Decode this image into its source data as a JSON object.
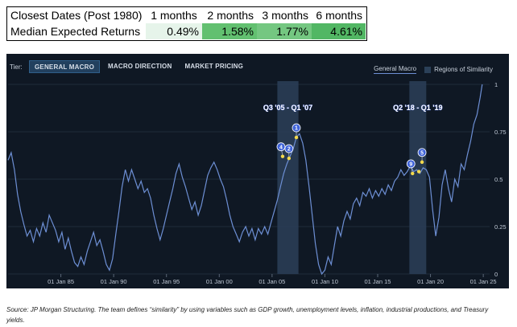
{
  "summary_table": {
    "header": [
      "Closest Dates (Post 1980)",
      "1 months",
      "2 months",
      "3 months",
      "6 months"
    ],
    "row": [
      "Median Expected Returns",
      "0.49%",
      "1.58%",
      "1.77%",
      "4.61%"
    ],
    "cell_colors": [
      "#ffffff",
      "#e6f4ea",
      "#62c070",
      "#74c781",
      "#52b764"
    ]
  },
  "panel": {
    "tier_label": "Tier:",
    "tabs": [
      {
        "label": "GENERAL MACRO",
        "active": true
      },
      {
        "label": "MACRO DIRECTION",
        "active": false
      },
      {
        "label": "MARKET PRICING",
        "active": false
      }
    ],
    "legend": {
      "line_label": "General Macro",
      "region_label": "Regions of Similarity"
    }
  },
  "chart_data": {
    "type": "line",
    "series": [
      {
        "name": "General Macro",
        "color": "#6d8fd4",
        "points": [
          [
            1980.0,
            0.6
          ],
          [
            1980.3,
            0.64
          ],
          [
            1980.6,
            0.55
          ],
          [
            1980.9,
            0.42
          ],
          [
            1981.2,
            0.33
          ],
          [
            1981.5,
            0.26
          ],
          [
            1981.8,
            0.2
          ],
          [
            1982.1,
            0.23
          ],
          [
            1982.4,
            0.17
          ],
          [
            1982.7,
            0.24
          ],
          [
            1983.0,
            0.2
          ],
          [
            1983.3,
            0.27
          ],
          [
            1983.6,
            0.22
          ],
          [
            1983.9,
            0.31
          ],
          [
            1984.2,
            0.27
          ],
          [
            1984.5,
            0.23
          ],
          [
            1984.8,
            0.17
          ],
          [
            1985.1,
            0.22
          ],
          [
            1985.4,
            0.13
          ],
          [
            1985.7,
            0.19
          ],
          [
            1986.0,
            0.12
          ],
          [
            1986.3,
            0.06
          ],
          [
            1986.6,
            0.04
          ],
          [
            1986.9,
            0.09
          ],
          [
            1987.2,
            0.05
          ],
          [
            1987.5,
            0.12
          ],
          [
            1987.8,
            0.17
          ],
          [
            1988.1,
            0.22
          ],
          [
            1988.4,
            0.15
          ],
          [
            1988.7,
            0.18
          ],
          [
            1989.0,
            0.12
          ],
          [
            1989.3,
            0.05
          ],
          [
            1989.6,
            0.02
          ],
          [
            1989.9,
            0.08
          ],
          [
            1990.2,
            0.21
          ],
          [
            1990.5,
            0.33
          ],
          [
            1990.8,
            0.46
          ],
          [
            1991.1,
            0.55
          ],
          [
            1991.4,
            0.49
          ],
          [
            1991.7,
            0.55
          ],
          [
            1992.0,
            0.5
          ],
          [
            1992.3,
            0.45
          ],
          [
            1992.6,
            0.49
          ],
          [
            1992.9,
            0.43
          ],
          [
            1993.2,
            0.45
          ],
          [
            1993.5,
            0.4
          ],
          [
            1993.8,
            0.31
          ],
          [
            1994.1,
            0.24
          ],
          [
            1994.4,
            0.18
          ],
          [
            1994.7,
            0.24
          ],
          [
            1995.0,
            0.31
          ],
          [
            1995.3,
            0.38
          ],
          [
            1995.6,
            0.45
          ],
          [
            1995.9,
            0.53
          ],
          [
            1996.2,
            0.58
          ],
          [
            1996.5,
            0.51
          ],
          [
            1996.8,
            0.46
          ],
          [
            1997.1,
            0.4
          ],
          [
            1997.4,
            0.34
          ],
          [
            1997.7,
            0.38
          ],
          [
            1998.0,
            0.31
          ],
          [
            1998.3,
            0.36
          ],
          [
            1998.6,
            0.44
          ],
          [
            1998.9,
            0.52
          ],
          [
            1999.2,
            0.56
          ],
          [
            1999.5,
            0.59
          ],
          [
            1999.8,
            0.55
          ],
          [
            2000.1,
            0.5
          ],
          [
            2000.4,
            0.46
          ],
          [
            2000.7,
            0.39
          ],
          [
            2001.0,
            0.31
          ],
          [
            2001.3,
            0.25
          ],
          [
            2001.6,
            0.21
          ],
          [
            2001.9,
            0.17
          ],
          [
            2002.2,
            0.22
          ],
          [
            2002.5,
            0.25
          ],
          [
            2002.8,
            0.2
          ],
          [
            2003.1,
            0.24
          ],
          [
            2003.4,
            0.18
          ],
          [
            2003.7,
            0.24
          ],
          [
            2004.0,
            0.21
          ],
          [
            2004.3,
            0.25
          ],
          [
            2004.6,
            0.21
          ],
          [
            2004.9,
            0.27
          ],
          [
            2005.2,
            0.33
          ],
          [
            2005.5,
            0.39
          ],
          [
            2005.8,
            0.46
          ],
          [
            2006.1,
            0.53
          ],
          [
            2006.4,
            0.58
          ],
          [
            2006.7,
            0.62
          ],
          [
            2007.0,
            0.66
          ],
          [
            2007.3,
            0.72
          ],
          [
            2007.6,
            0.74
          ],
          [
            2007.9,
            0.69
          ],
          [
            2008.2,
            0.6
          ],
          [
            2008.5,
            0.46
          ],
          [
            2008.8,
            0.31
          ],
          [
            2009.1,
            0.16
          ],
          [
            2009.4,
            0.05
          ],
          [
            2009.7,
            0.0
          ],
          [
            2010.0,
            0.02
          ],
          [
            2010.3,
            0.09
          ],
          [
            2010.6,
            0.05
          ],
          [
            2010.9,
            0.15
          ],
          [
            2011.2,
            0.25
          ],
          [
            2011.5,
            0.2
          ],
          [
            2011.8,
            0.28
          ],
          [
            2012.1,
            0.33
          ],
          [
            2012.4,
            0.29
          ],
          [
            2012.7,
            0.37
          ],
          [
            2013.0,
            0.4
          ],
          [
            2013.3,
            0.36
          ],
          [
            2013.6,
            0.43
          ],
          [
            2013.9,
            0.41
          ],
          [
            2014.2,
            0.45
          ],
          [
            2014.5,
            0.4
          ],
          [
            2014.8,
            0.44
          ],
          [
            2015.1,
            0.41
          ],
          [
            2015.4,
            0.45
          ],
          [
            2015.7,
            0.42
          ],
          [
            2016.0,
            0.47
          ],
          [
            2016.3,
            0.44
          ],
          [
            2016.6,
            0.49
          ],
          [
            2016.9,
            0.51
          ],
          [
            2017.2,
            0.55
          ],
          [
            2017.5,
            0.52
          ],
          [
            2017.8,
            0.54
          ],
          [
            2018.1,
            0.57
          ],
          [
            2018.4,
            0.54
          ],
          [
            2018.7,
            0.55
          ],
          [
            2019.0,
            0.53
          ],
          [
            2019.3,
            0.56
          ],
          [
            2019.6,
            0.55
          ],
          [
            2019.9,
            0.51
          ],
          [
            2020.2,
            0.34
          ],
          [
            2020.5,
            0.2
          ],
          [
            2020.8,
            0.3
          ],
          [
            2021.1,
            0.47
          ],
          [
            2021.4,
            0.55
          ],
          [
            2021.7,
            0.45
          ],
          [
            2022.0,
            0.38
          ],
          [
            2022.3,
            0.5
          ],
          [
            2022.6,
            0.46
          ],
          [
            2022.9,
            0.58
          ],
          [
            2023.2,
            0.55
          ],
          [
            2023.5,
            0.63
          ],
          [
            2023.8,
            0.7
          ],
          [
            2024.1,
            0.79
          ],
          [
            2024.4,
            0.84
          ],
          [
            2024.7,
            0.93
          ],
          [
            2024.9,
            1.0
          ]
        ]
      }
    ],
    "regions": [
      {
        "label": "Q3 '05 - Q1 '07",
        "x_start": 2005.5,
        "x_end": 2007.5
      },
      {
        "label": "Q2 '18 - Q1 '19",
        "x_start": 2018.0,
        "x_end": 2019.6
      }
    ],
    "markers": [
      {
        "label": "1",
        "x": 2007.3,
        "y": 0.72
      },
      {
        "label": "2",
        "x": 2006.6,
        "y": 0.61
      },
      {
        "label": "4",
        "x": 2006.0,
        "y": 0.62
      },
      {
        "label": "9",
        "x": 2018.3,
        "y": 0.53
      },
      {
        "label": "5",
        "x": 2019.2,
        "y": 0.59
      }
    ],
    "extra_points": [
      {
        "x": 2018.9,
        "y": 0.54
      }
    ],
    "x_ticks": [
      {
        "label": "01 Jan 85",
        "x": 1985
      },
      {
        "label": "01 Jan 90",
        "x": 1990
      },
      {
        "label": "01 Jan 95",
        "x": 1995
      },
      {
        "label": "01 Jan 00",
        "x": 2000
      },
      {
        "label": "01 Jan 05",
        "x": 2005
      },
      {
        "label": "01 Jan 10",
        "x": 2010
      },
      {
        "label": "01 Jan 15",
        "x": 2015
      },
      {
        "label": "01 Jan 20",
        "x": 2020
      },
      {
        "label": "01 Jan 25",
        "x": 2025
      }
    ],
    "y_ticks": [
      {
        "label": "0",
        "value": 0
      },
      {
        "label": "0.25",
        "value": 0.25
      },
      {
        "label": "0.5",
        "value": 0.5
      },
      {
        "label": "0.75",
        "value": 0.75
      },
      {
        "label": "1",
        "value": 1
      }
    ],
    "xlim": [
      1980,
      2025.6
    ],
    "ylim": [
      0,
      1
    ],
    "grid": true
  },
  "caption": "Source: JP Morgan Structuring. The team defines “similarity” by using variables such as GDP growth, unemployment levels, inflation, industrial productions, and Treasury yields."
}
